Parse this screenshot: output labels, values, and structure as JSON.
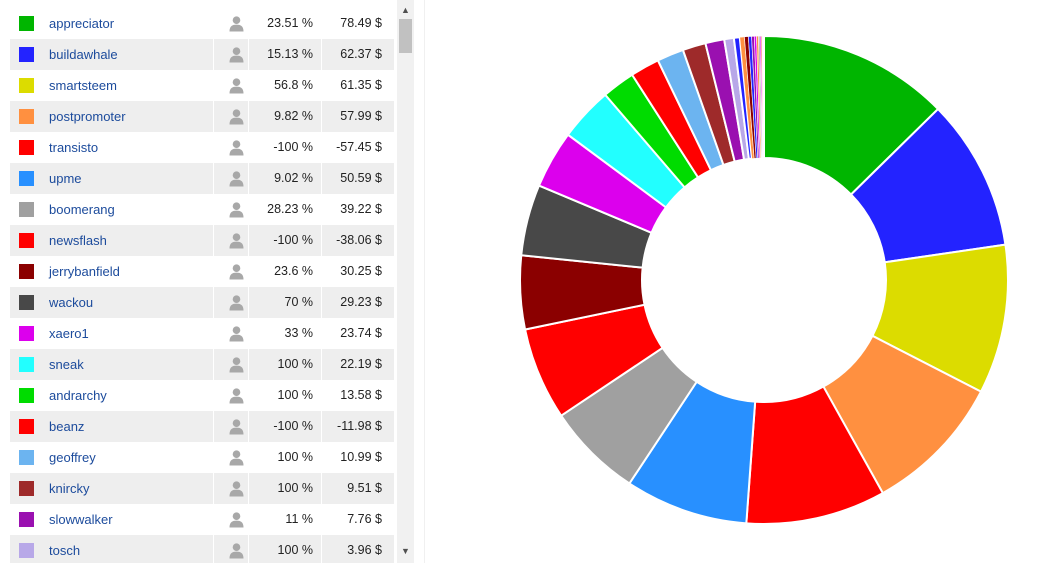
{
  "chart_data": {
    "type": "pie",
    "donut": true,
    "rows": [
      {
        "name": "appreciator",
        "percent": "23.51 %",
        "value": "78.49 $",
        "amount": 78.49,
        "color": "#00b500"
      },
      {
        "name": "buildawhale",
        "percent": "15.13 %",
        "value": "62.37 $",
        "amount": 62.37,
        "color": "#2323ff"
      },
      {
        "name": "smartsteem",
        "percent": "56.8 %",
        "value": "61.35 $",
        "amount": 61.35,
        "color": "#dcdc00"
      },
      {
        "name": "postpromoter",
        "percent": "9.82 %",
        "value": "57.99 $",
        "amount": 57.99,
        "color": "#ff9040"
      },
      {
        "name": "transisto",
        "percent": "-100 %",
        "value": "-57.45 $",
        "amount": -57.45,
        "color": "#ff0000"
      },
      {
        "name": "upme",
        "percent": "9.02 %",
        "value": "50.59 $",
        "amount": 50.59,
        "color": "#2890ff"
      },
      {
        "name": "boomerang",
        "percent": "28.23 %",
        "value": "39.22 $",
        "amount": 39.22,
        "color": "#a0a0a0"
      },
      {
        "name": "newsflash",
        "percent": "-100 %",
        "value": "-38.06 $",
        "amount": -38.06,
        "color": "#ff0000"
      },
      {
        "name": "jerrybanfield",
        "percent": "23.6 %",
        "value": "30.25 $",
        "amount": 30.25,
        "color": "#8b0000"
      },
      {
        "name": "wackou",
        "percent": "70 %",
        "value": "29.23 $",
        "amount": 29.23,
        "color": "#484848"
      },
      {
        "name": "xaero1",
        "percent": "33 %",
        "value": "23.74 $",
        "amount": 23.74,
        "color": "#dc00ed"
      },
      {
        "name": "sneak",
        "percent": "100 %",
        "value": "22.19 $",
        "amount": 22.19,
        "color": "#22ffff"
      },
      {
        "name": "andrarchy",
        "percent": "100 %",
        "value": "13.58 $",
        "amount": 13.58,
        "color": "#00dc00"
      },
      {
        "name": "beanz",
        "percent": "-100 %",
        "value": "-11.98 $",
        "amount": -11.98,
        "color": "#ff0000"
      },
      {
        "name": "geoffrey",
        "percent": "100 %",
        "value": "10.99 $",
        "amount": 10.99,
        "color": "#6cb4f0"
      },
      {
        "name": "knircky",
        "percent": "100 %",
        "value": "9.51 $",
        "amount": 9.51,
        "color": "#9e2a2a"
      },
      {
        "name": "slowwalker",
        "percent": "11 %",
        "value": "7.76 $",
        "amount": 7.76,
        "color": "#9a10b0"
      },
      {
        "name": "tosch",
        "percent": "100 %",
        "value": "3.96 $",
        "amount": 3.96,
        "color": "#b8a8e8"
      }
    ],
    "tail_slices": [
      {
        "amount": 2.4,
        "color": "#2323ff"
      },
      {
        "amount": 1.9,
        "color": "#ff9040"
      },
      {
        "amount": 1.6,
        "color": "#8b0000"
      },
      {
        "amount": 1.3,
        "color": "#2323ff"
      },
      {
        "amount": 1.1,
        "color": "#9a10b0"
      },
      {
        "amount": 0.9,
        "color": "#dc00ed"
      },
      {
        "amount": 0.8,
        "color": "#ff9040"
      },
      {
        "amount": 0.6,
        "color": "#a0a0a0"
      },
      {
        "amount": 0.5,
        "color": "#dc00ed"
      },
      {
        "amount": 0.4,
        "color": "#ff0000"
      },
      {
        "amount": 0.3,
        "color": "#dcdc00"
      },
      {
        "amount": 0.25,
        "color": "#2890ff"
      },
      {
        "amount": 0.2,
        "color": "#ff9040"
      }
    ]
  },
  "icons": {
    "user": "user-icon",
    "scroll_up": "chevron-up-icon",
    "scroll_down": "chevron-down-icon"
  },
  "colors": {
    "link": "#1c4b9c",
    "row_alt": "#eeeeee"
  }
}
